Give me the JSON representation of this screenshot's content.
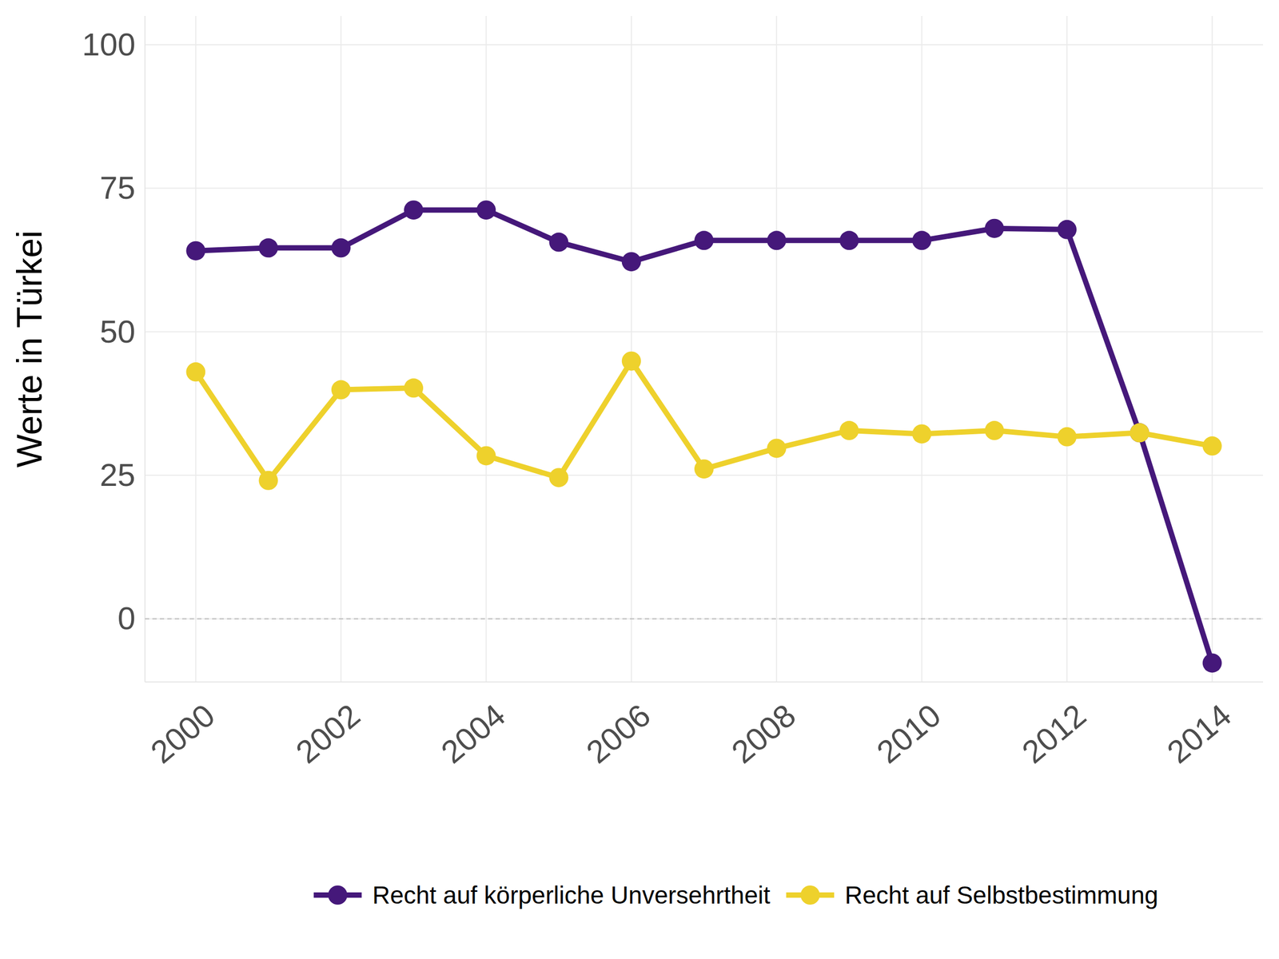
{
  "chart_data": {
    "type": "line",
    "y_label": "Werte in Türkei",
    "x": [
      2000,
      2001,
      2002,
      2003,
      2004,
      2005,
      2006,
      2007,
      2008,
      2009,
      2010,
      2011,
      2012,
      2013,
      2014
    ],
    "series": [
      {
        "name": "Recht auf körperliche Unversehrtheit",
        "color": "#45187a",
        "marker": "circle",
        "line_style": "solid",
        "values": [
          64.1,
          64.6,
          64.6,
          71.2,
          71.2,
          65.6,
          62.2,
          65.9,
          65.9,
          65.9,
          65.9,
          68.0,
          67.8,
          32.4,
          -7.7
        ]
      },
      {
        "name": "Recht auf Selbstbestimmung",
        "color": "#eed12c",
        "marker": "circle",
        "line_style": "solid",
        "values": [
          43.0,
          24.1,
          39.9,
          40.2,
          28.4,
          24.6,
          44.9,
          26.1,
          29.7,
          32.8,
          32.2,
          32.8,
          31.7,
          32.4,
          30.1
        ]
      }
    ],
    "xlim": [
      1999.3,
      2014.7
    ],
    "xticks": [
      2000,
      2002,
      2004,
      2006,
      2008,
      2010,
      2012,
      2014
    ],
    "ylim": [
      -11,
      105
    ],
    "yticks": [
      0,
      25,
      50,
      75,
      100
    ],
    "grid": true,
    "legend": "bottom"
  }
}
